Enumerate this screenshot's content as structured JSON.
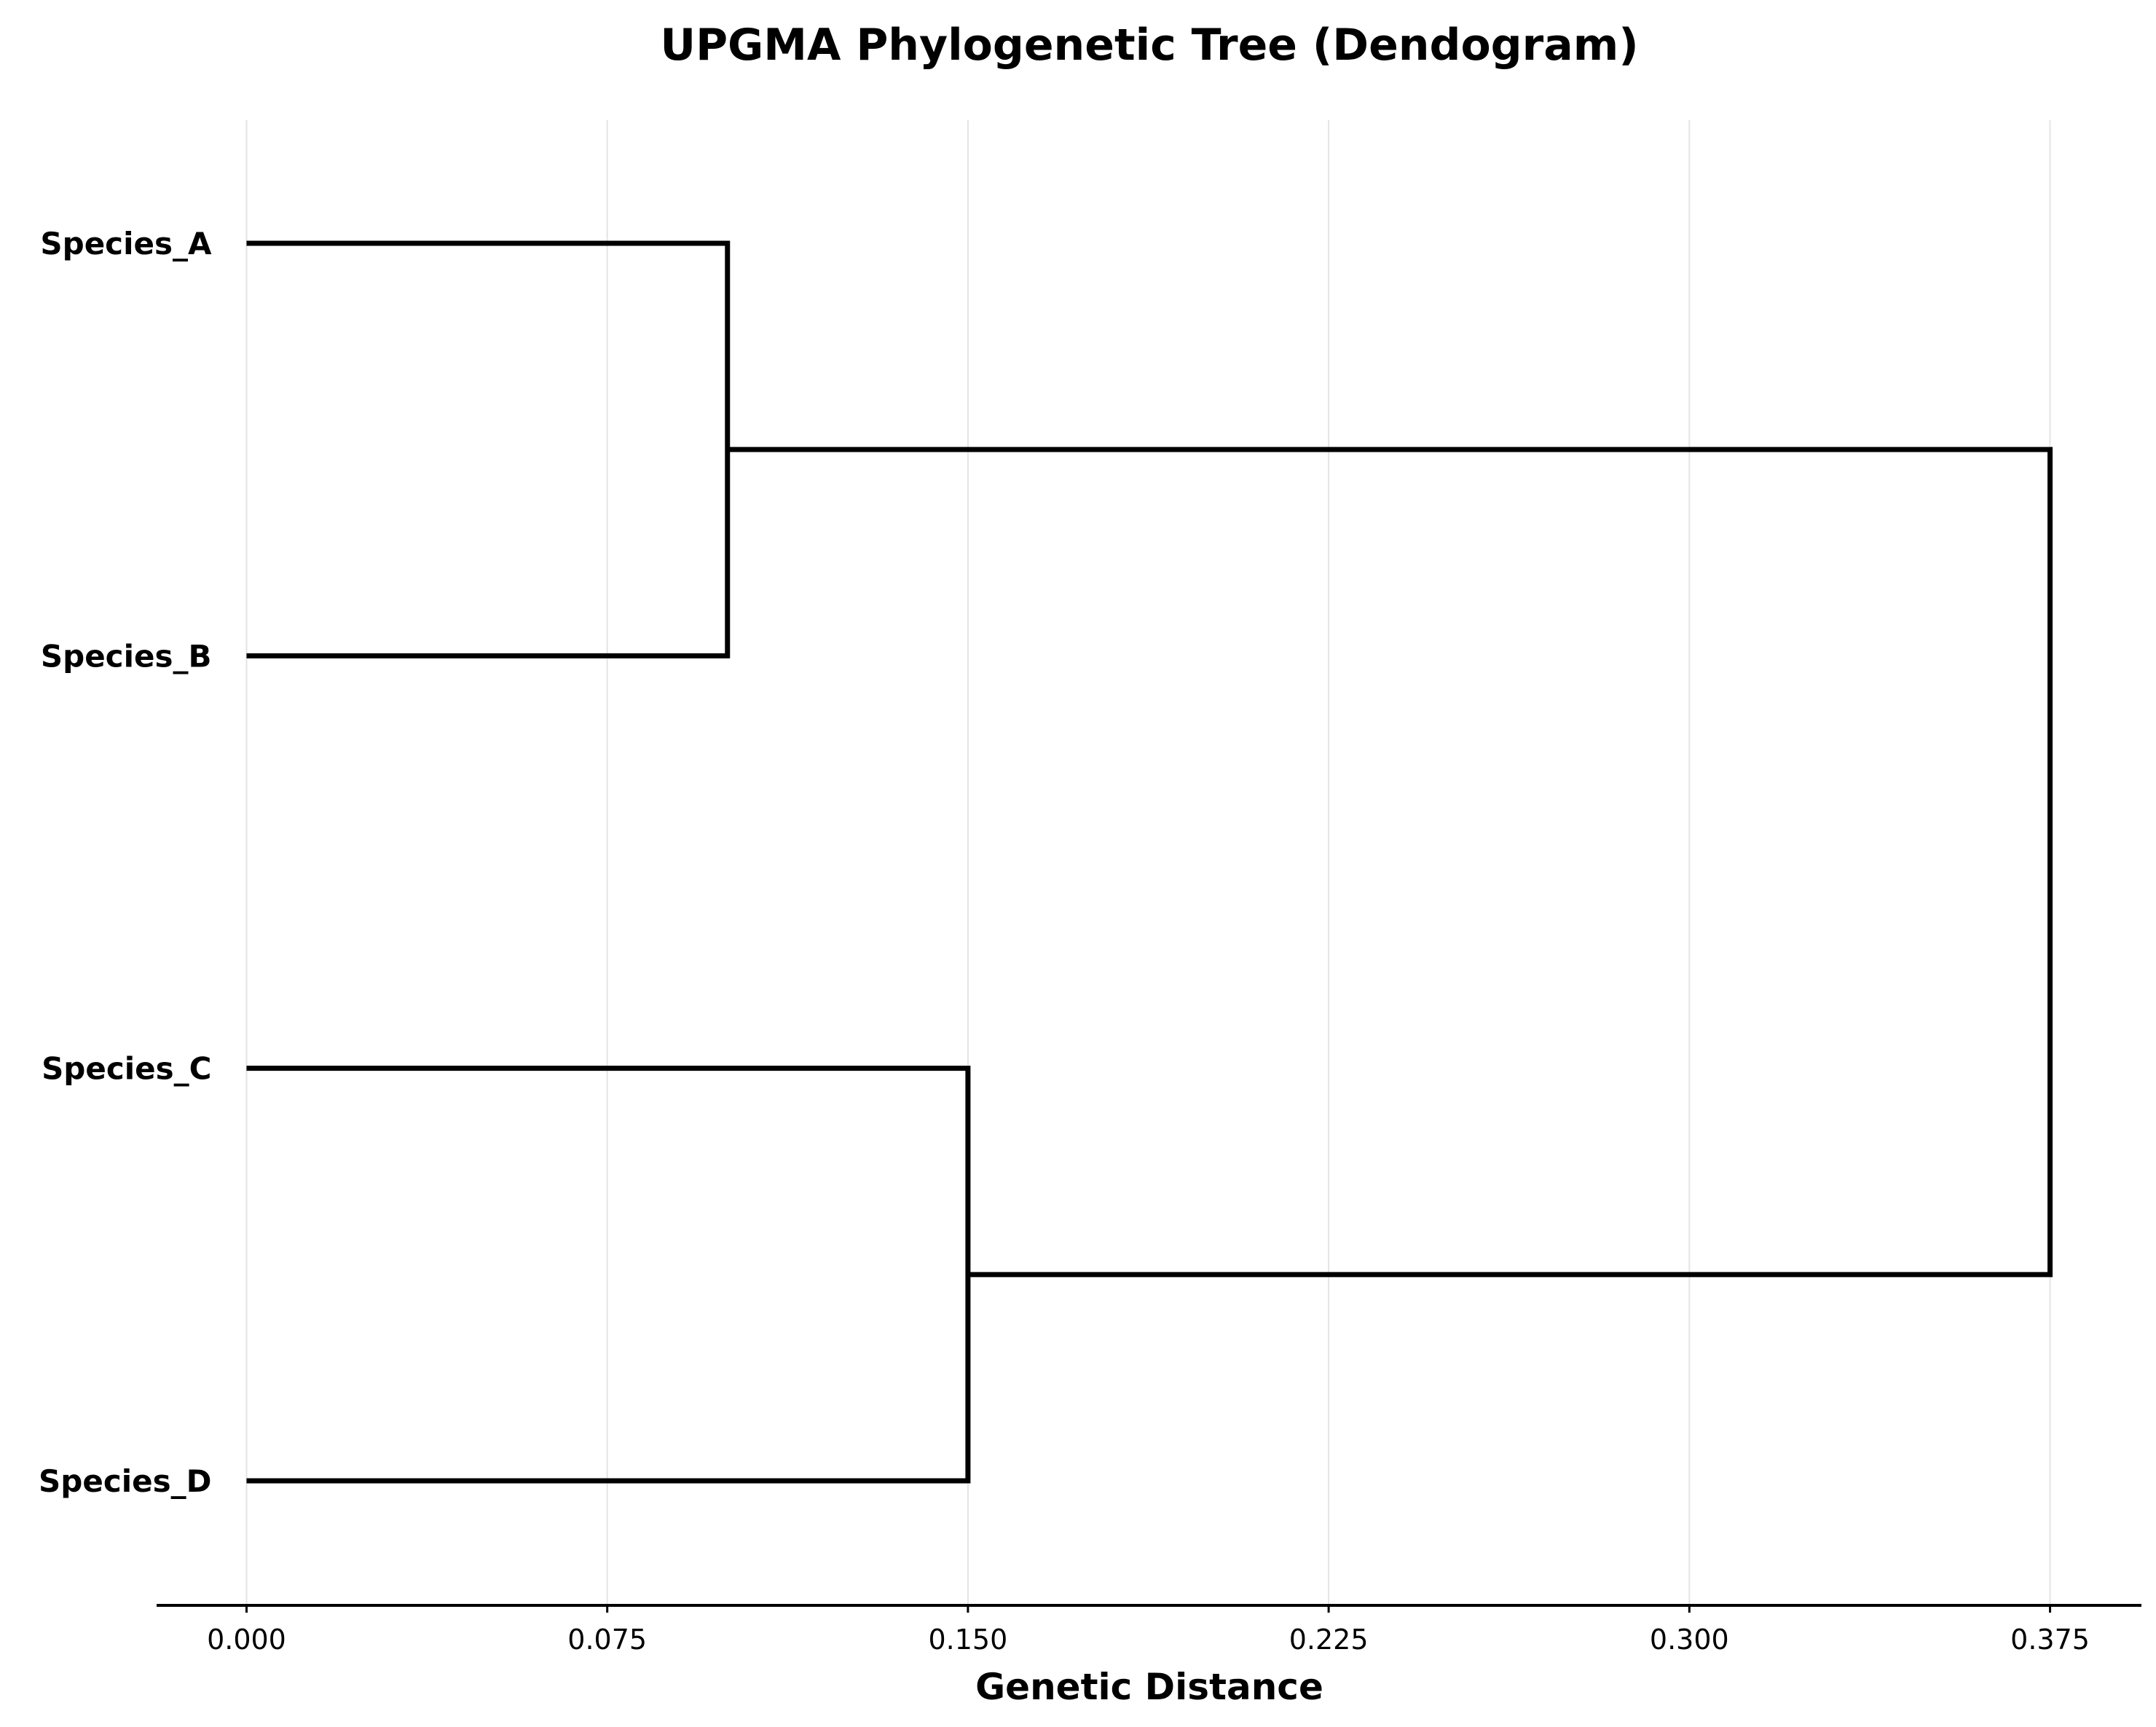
{
  "chart_data": {
    "type": "dendrogram",
    "title": "UPGMA Phylogenetic Tree (Dendogram)",
    "xlabel": "Genetic Distance",
    "ylabel": "",
    "xlim": [
      -0.0187,
      0.394
    ],
    "xticks": [
      0.0,
      0.075,
      0.15,
      0.225,
      0.3,
      0.375
    ],
    "xtick_labels": [
      "0.000",
      "0.075",
      "0.150",
      "0.225",
      "0.300",
      "0.375"
    ],
    "grid": true,
    "leaves": [
      "Species_A",
      "Species_B",
      "Species_C",
      "Species_D"
    ],
    "merges": [
      {
        "left": "Species_A",
        "right": "Species_B",
        "height": 0.1
      },
      {
        "left": "Species_C",
        "right": "Species_D",
        "height": 0.15
      },
      {
        "left": "(Species_A, Species_B)",
        "right": "(Species_C, Species_D)",
        "height": 0.375
      }
    ]
  }
}
